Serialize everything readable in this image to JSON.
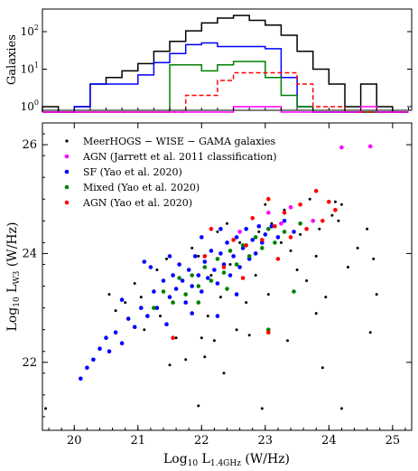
{
  "chart_data": [
    {
      "type": "histogram",
      "ylabel": "Galaxies",
      "yscale": "log",
      "ylim": [
        0.8,
        400
      ],
      "xlim": [
        19.5,
        25.3
      ],
      "yticks": [
        {
          "v": 1,
          "label": "10^0"
        },
        {
          "v": 10,
          "label": "10^1"
        },
        {
          "v": 100,
          "label": "10^2"
        }
      ],
      "bin_edges": [
        19.5,
        19.75,
        20.0,
        20.25,
        20.5,
        20.75,
        21.0,
        21.25,
        21.5,
        21.75,
        22.0,
        22.25,
        22.5,
        22.75,
        23.0,
        23.25,
        23.5,
        23.75,
        24.0,
        24.25,
        24.5,
        24.75,
        25.0,
        25.25
      ],
      "series": [
        {
          "key": "all",
          "color": "#000000",
          "dash": "",
          "counts": [
            1,
            0,
            1,
            4,
            6,
            9,
            14,
            30,
            55,
            105,
            170,
            230,
            270,
            200,
            150,
            80,
            30,
            10,
            4,
            1,
            4,
            1,
            0
          ]
        },
        {
          "key": "sf",
          "color": "#0000ff",
          "dash": "",
          "counts": [
            0,
            0,
            1,
            4,
            4,
            4,
            7,
            15,
            26,
            45,
            50,
            40,
            40,
            40,
            35,
            6,
            1,
            0,
            0,
            0,
            0,
            0,
            0
          ]
        },
        {
          "key": "mixed",
          "color": "#008000",
          "dash": "",
          "counts": [
            0,
            0,
            0,
            0,
            0,
            0,
            0,
            0,
            13,
            13,
            9,
            13,
            16,
            16,
            6,
            2,
            1,
            0,
            0,
            0,
            0,
            0,
            0
          ]
        },
        {
          "key": "agn_yao",
          "color": "#ff0000",
          "dash": "5,3",
          "counts": [
            0,
            0,
            0,
            0,
            0,
            0,
            0,
            0,
            0,
            2,
            2,
            5,
            8,
            8,
            8,
            8,
            4,
            1,
            1,
            0,
            0,
            0,
            0
          ]
        },
        {
          "key": "agn_jarrett",
          "color": "#ff00ff",
          "dash": "",
          "counts": [
            0,
            0,
            0,
            0,
            0,
            0,
            0,
            0,
            0,
            0,
            0,
            0,
            1,
            1,
            1,
            0,
            0,
            0,
            0,
            0,
            1,
            0,
            0
          ]
        }
      ]
    },
    {
      "type": "scatter",
      "xlabel": "Log10 L1.4GHz (W/Hz)",
      "ylabel": "Log10 LW3 (W/Hz)",
      "xlim": [
        19.5,
        25.3
      ],
      "ylim": [
        20.75,
        26.4
      ],
      "xticks": [
        20,
        21,
        22,
        23,
        24,
        25
      ],
      "yticks": [
        22,
        24,
        26
      ],
      "legend_position": "top-left",
      "series": [
        {
          "key": "all",
          "name": "MeerHOGS − WISE − GAMA galaxies",
          "color": "#000000",
          "points": [
            [
              19.55,
              21.15
            ],
            [
              20.55,
              23.25
            ],
            [
              20.65,
              22.95
            ],
            [
              20.8,
              23.1
            ],
            [
              20.95,
              23.45
            ],
            [
              21.05,
              23.2
            ],
            [
              21.1,
              22.6
            ],
            [
              21.3,
              23.7
            ],
            [
              21.35,
              22.85
            ],
            [
              21.45,
              23.9
            ],
            [
              21.6,
              22.45
            ],
            [
              21.75,
              22.05
            ],
            [
              21.85,
              24.1
            ],
            [
              21.95,
              23.95
            ],
            [
              22.05,
              22.1
            ],
            [
              22.1,
              22.85
            ],
            [
              22.15,
              23.6
            ],
            [
              22.2,
              22.4
            ],
            [
              22.25,
              24.4
            ],
            [
              22.3,
              23.2
            ],
            [
              22.4,
              24.55
            ],
            [
              22.45,
              23.8
            ],
            [
              22.55,
              22.6
            ],
            [
              22.6,
              24.2
            ],
            [
              22.7,
              23.1
            ],
            [
              22.75,
              22.5
            ],
            [
              22.8,
              24.65
            ],
            [
              22.85,
              23.6
            ],
            [
              22.9,
              24.4
            ],
            [
              22.95,
              21.15
            ],
            [
              23.0,
              24.9
            ],
            [
              23.05,
              23.25
            ],
            [
              23.1,
              24.55
            ],
            [
              23.2,
              23.9
            ],
            [
              23.25,
              24.2
            ],
            [
              23.3,
              24.8
            ],
            [
              23.35,
              22.4
            ],
            [
              23.4,
              24.05
            ],
            [
              23.5,
              23.7
            ],
            [
              23.55,
              24.35
            ],
            [
              23.65,
              23.5
            ],
            [
              23.7,
              25.0
            ],
            [
              23.8,
              23.95
            ],
            [
              23.85,
              24.45
            ],
            [
              23.9,
              21.9
            ],
            [
              23.95,
              23.2
            ],
            [
              24.05,
              24.7
            ],
            [
              24.1,
              24.95
            ],
            [
              24.15,
              24.6
            ],
            [
              24.2,
              21.15
            ],
            [
              24.3,
              23.75
            ],
            [
              24.45,
              24.1
            ],
            [
              24.6,
              24.45
            ],
            [
              24.65,
              22.55
            ],
            [
              24.7,
              23.9
            ],
            [
              24.75,
              23.25
            ],
            [
              24.2,
              24.9
            ],
            [
              21.5,
              21.95
            ],
            [
              21.95,
              21.2
            ],
            [
              23.8,
              22.9
            ],
            [
              22.35,
              21.8
            ],
            [
              22.0,
              22.45
            ]
          ]
        },
        {
          "key": "agn_jarrett",
          "name": "AGN (Jarrett et al. 2011 classification)",
          "color": "#ff00ff",
          "points": [
            [
              24.2,
              25.95
            ],
            [
              24.65,
              25.97
            ],
            [
              23.05,
              24.75
            ],
            [
              23.25,
              24.55
            ],
            [
              23.75,
              24.6
            ],
            [
              22.6,
              24.4
            ],
            [
              23.4,
              24.85
            ]
          ]
        },
        {
          "key": "sf",
          "name": "SF (Yao et al. 2020)",
          "color": "#0000ff",
          "points": [
            [
              20.1,
              21.7
            ],
            [
              20.2,
              21.9
            ],
            [
              20.3,
              22.05
            ],
            [
              20.4,
              22.25
            ],
            [
              20.5,
              22.45
            ],
            [
              20.55,
              22.2
            ],
            [
              20.65,
              22.55
            ],
            [
              20.75,
              22.35
            ],
            [
              20.85,
              22.8
            ],
            [
              20.95,
              22.65
            ],
            [
              21.05,
              23.0
            ],
            [
              21.15,
              22.85
            ],
            [
              21.25,
              23.3
            ],
            [
              21.3,
              23.0
            ],
            [
              21.4,
              23.5
            ],
            [
              21.5,
              23.2
            ],
            [
              21.55,
              23.6
            ],
            [
              21.6,
              23.35
            ],
            [
              21.65,
              23.8
            ],
            [
              21.7,
              23.5
            ],
            [
              21.75,
              23.1
            ],
            [
              21.8,
              23.7
            ],
            [
              21.85,
              23.4
            ],
            [
              21.9,
              23.95
            ],
            [
              21.95,
              23.6
            ],
            [
              22.0,
              23.3
            ],
            [
              22.05,
              23.85
            ],
            [
              22.1,
              23.55
            ],
            [
              22.15,
              24.05
            ],
            [
              22.2,
              23.7
            ],
            [
              22.25,
              23.45
            ],
            [
              22.3,
              24.0
            ],
            [
              22.35,
              23.8
            ],
            [
              22.4,
              24.2
            ],
            [
              22.45,
              23.6
            ],
            [
              22.5,
              23.95
            ],
            [
              22.55,
              24.3
            ],
            [
              22.6,
              23.75
            ],
            [
              22.65,
              24.1
            ],
            [
              22.7,
              24.45
            ],
            [
              22.75,
              23.9
            ],
            [
              22.8,
              24.25
            ],
            [
              22.85,
              24.0
            ],
            [
              22.9,
              24.5
            ],
            [
              22.95,
              24.2
            ],
            [
              23.0,
              24.35
            ],
            [
              23.1,
              24.5
            ],
            [
              23.2,
              24.3
            ],
            [
              23.3,
              24.6
            ],
            [
              23.45,
              24.4
            ],
            [
              21.2,
              23.75
            ],
            [
              21.45,
              22.7
            ],
            [
              21.85,
              22.9
            ],
            [
              22.0,
              24.3
            ],
            [
              22.25,
              22.85
            ],
            [
              22.55,
              23.25
            ],
            [
              21.1,
              23.85
            ],
            [
              20.75,
              23.15
            ],
            [
              21.5,
              23.95
            ],
            [
              22.3,
              24.45
            ]
          ]
        },
        {
          "key": "mixed",
          "name": "Mixed (Yao et al. 2020)",
          "color": "#008000",
          "points": [
            [
              21.25,
              23.0
            ],
            [
              21.4,
              23.3
            ],
            [
              21.55,
              23.1
            ],
            [
              21.65,
              23.55
            ],
            [
              21.75,
              23.25
            ],
            [
              21.85,
              23.6
            ],
            [
              21.95,
              23.4
            ],
            [
              22.05,
              23.75
            ],
            [
              22.15,
              23.5
            ],
            [
              22.25,
              23.9
            ],
            [
              22.35,
              23.65
            ],
            [
              22.45,
              24.05
            ],
            [
              22.55,
              23.8
            ],
            [
              22.65,
              24.15
            ],
            [
              22.75,
              23.95
            ],
            [
              22.85,
              24.3
            ],
            [
              22.95,
              24.1
            ],
            [
              23.05,
              24.45
            ],
            [
              23.15,
              24.2
            ],
            [
              23.3,
              24.4
            ],
            [
              23.45,
              23.3
            ],
            [
              23.05,
              22.6
            ],
            [
              22.4,
              23.35
            ],
            [
              21.95,
              23.1
            ],
            [
              23.55,
              24.55
            ]
          ]
        },
        {
          "key": "agn_yao",
          "name": "AGN (Yao et al. 2020)",
          "color": "#ff0000",
          "points": [
            [
              21.55,
              22.45
            ],
            [
              22.15,
              24.45
            ],
            [
              22.5,
              24.25
            ],
            [
              22.65,
              23.55
            ],
            [
              22.8,
              24.65
            ],
            [
              22.95,
              24.25
            ],
            [
              23.05,
              22.55
            ],
            [
              23.15,
              24.5
            ],
            [
              23.3,
              24.75
            ],
            [
              23.4,
              24.3
            ],
            [
              23.55,
              24.9
            ],
            [
              23.65,
              24.45
            ],
            [
              23.8,
              25.15
            ],
            [
              23.9,
              24.6
            ],
            [
              24.0,
              24.95
            ],
            [
              24.1,
              24.8
            ],
            [
              22.05,
              23.95
            ],
            [
              22.35,
              23.75
            ],
            [
              23.2,
              23.9
            ],
            [
              23.05,
              25.0
            ],
            [
              22.7,
              24.15
            ]
          ]
        }
      ]
    }
  ]
}
